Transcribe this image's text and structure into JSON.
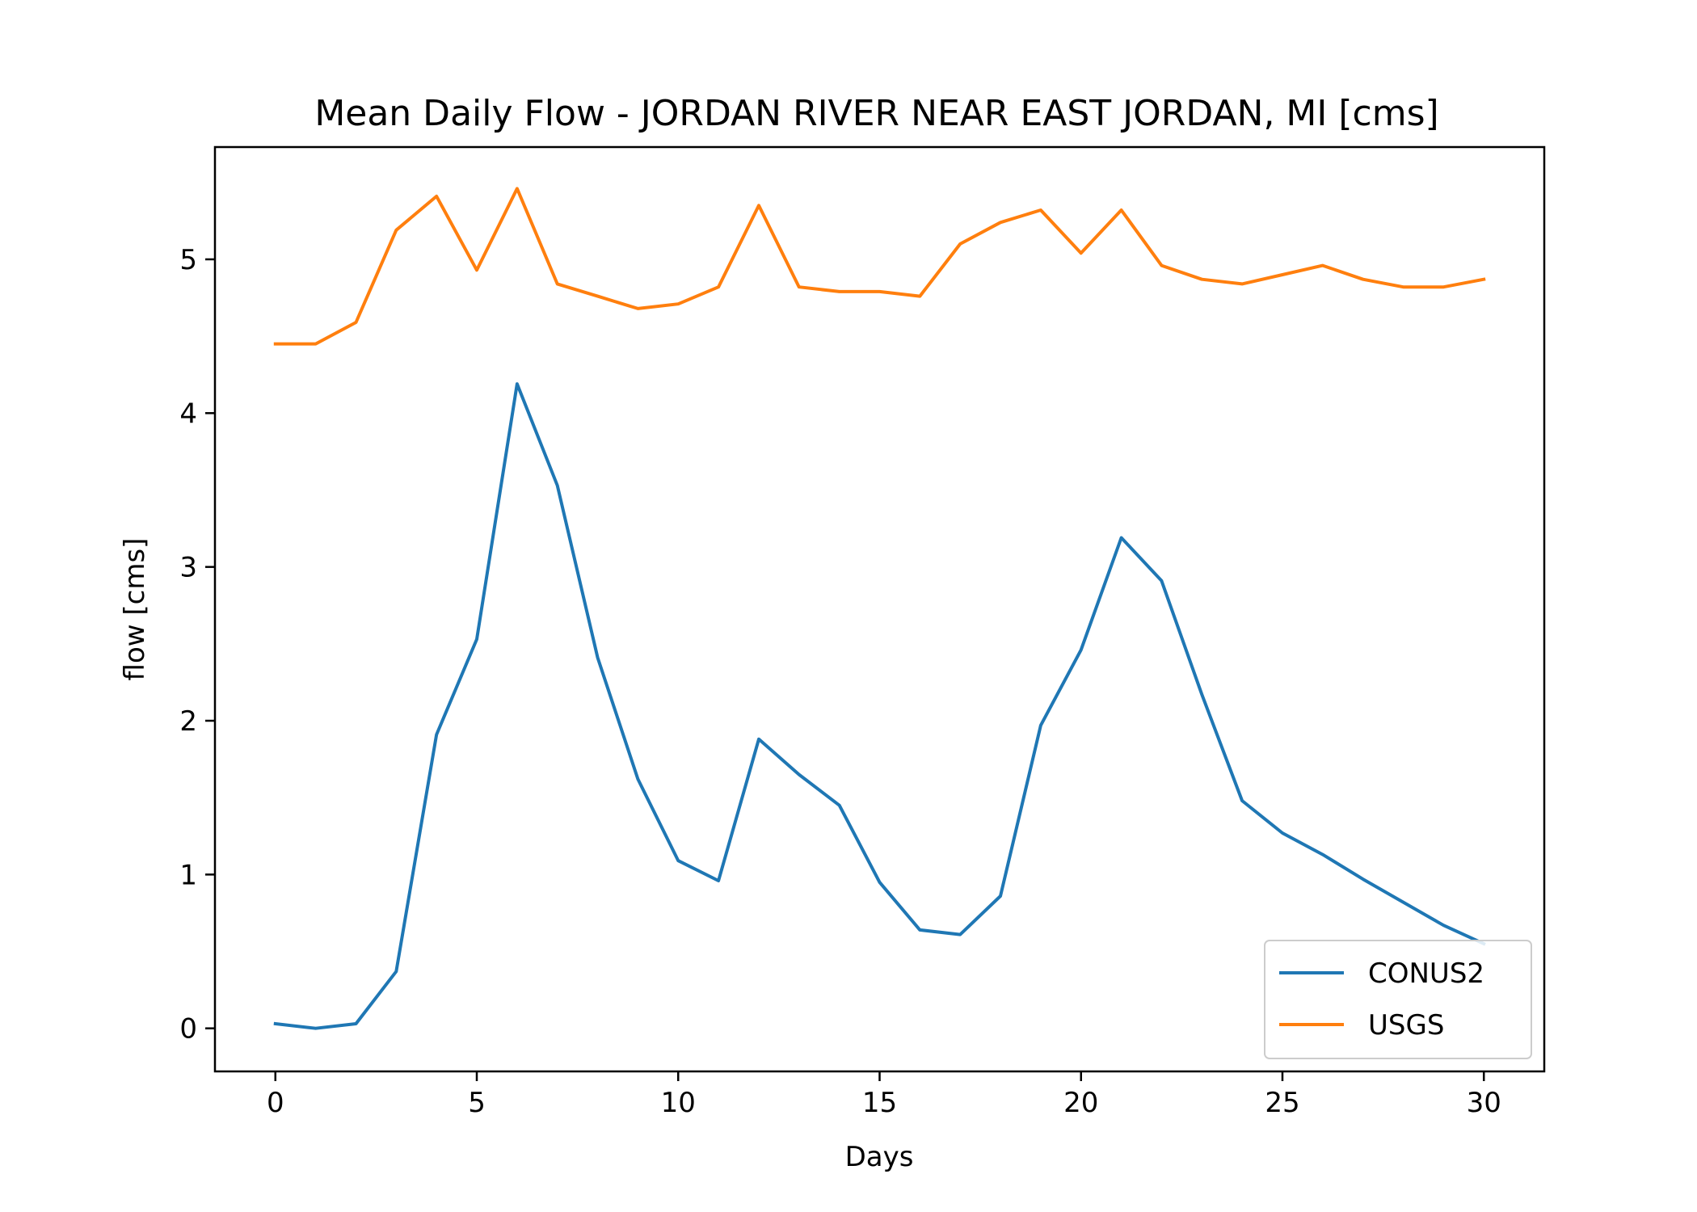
{
  "chart_data": {
    "type": "line",
    "title": "Mean Daily Flow - JORDAN RIVER NEAR EAST JORDAN, MI [cms]",
    "xlabel": "Days",
    "ylabel": "flow [cms]",
    "xlim": [
      -1.5,
      31.5
    ],
    "ylim": [
      -0.28,
      5.73
    ],
    "xticks": [
      0,
      5,
      10,
      15,
      20,
      25,
      30
    ],
    "yticks": [
      0,
      1,
      2,
      3,
      4,
      5
    ],
    "grid": false,
    "legend": "lower-right",
    "x": [
      0,
      1,
      2,
      3,
      4,
      5,
      6,
      7,
      8,
      9,
      10,
      11,
      12,
      13,
      14,
      15,
      16,
      17,
      18,
      19,
      20,
      21,
      22,
      23,
      24,
      25,
      26,
      27,
      28,
      29,
      30
    ],
    "series": [
      {
        "name": "CONUS2",
        "color": "#1f77b4",
        "values": [
          0.03,
          0.0,
          0.03,
          0.37,
          1.91,
          2.53,
          4.19,
          3.53,
          2.41,
          1.62,
          1.09,
          0.96,
          1.88,
          1.65,
          1.45,
          0.95,
          0.64,
          0.61,
          0.86,
          1.97,
          2.46,
          3.19,
          2.91,
          2.17,
          1.48,
          1.27,
          1.13,
          0.97,
          0.82,
          0.67,
          0.55
        ]
      },
      {
        "name": "USGS",
        "color": "#ff7f0e",
        "values": [
          4.45,
          4.45,
          4.59,
          5.19,
          5.41,
          4.93,
          5.46,
          4.84,
          4.76,
          4.68,
          4.71,
          4.82,
          5.35,
          4.82,
          4.79,
          4.79,
          4.76,
          5.1,
          5.24,
          5.32,
          5.04,
          5.32,
          4.96,
          4.87,
          4.84,
          4.9,
          4.96,
          4.87,
          4.82,
          4.82,
          4.87
        ]
      }
    ]
  }
}
